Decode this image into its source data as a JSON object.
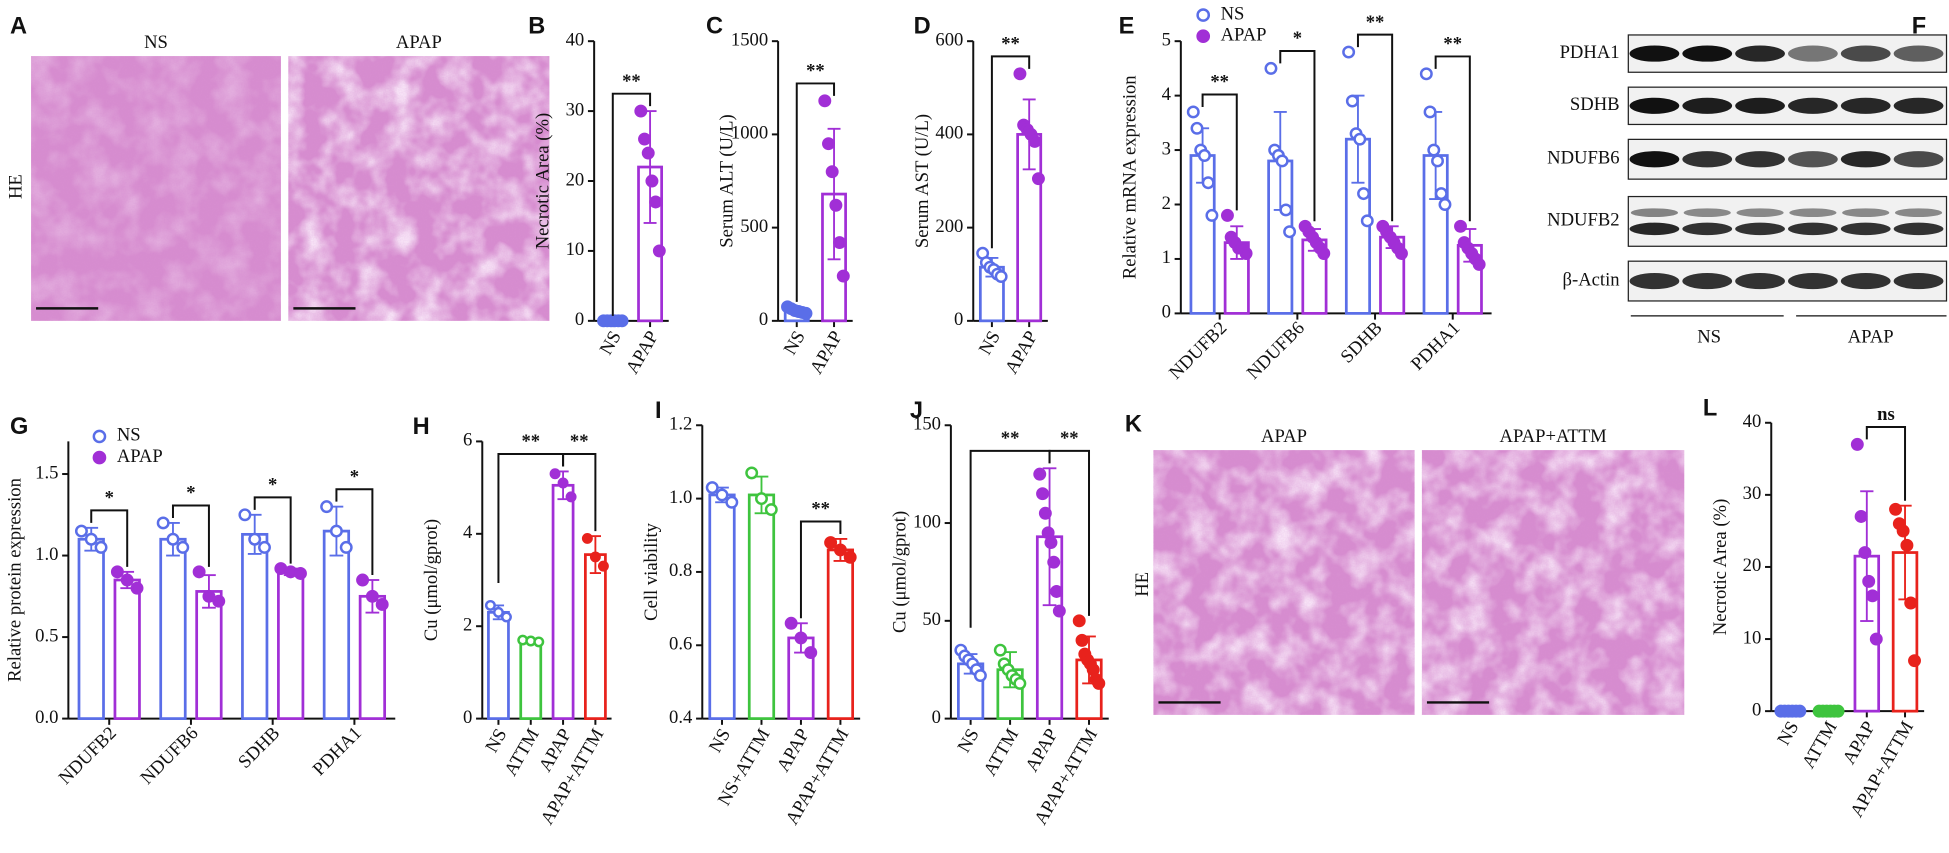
{
  "images": [
    {
      "letter": "A",
      "labels": [
        "NS",
        "APAP"
      ],
      "stain": "HE"
    },
    {
      "letter": "K",
      "labels": [
        "APAP",
        "APAP+ATTM"
      ],
      "stain": "HE"
    }
  ],
  "blot": {
    "letter": "F",
    "proteins": [
      "PDHA1",
      "SDHB",
      "NDUFB6",
      "NDUFB2",
      "β-Actin"
    ],
    "groups": [
      "NS",
      "APAP"
    ]
  },
  "chart_data": [
    {
      "type": "bar",
      "panel": "B",
      "ylabel": "Necrotic Area (%)",
      "categories": [
        "NS",
        "APAP"
      ],
      "values": [
        0,
        22
      ],
      "errors": [
        0,
        8
      ],
      "points": [
        [
          0,
          0,
          0,
          0,
          0,
          0
        ],
        [
          30,
          26,
          24,
          20,
          17,
          10
        ]
      ],
      "colors": [
        "#5a6ee8",
        "#a12fd6"
      ],
      "hollow": [
        false,
        false
      ],
      "ylim": [
        0,
        40
      ],
      "yticks": [
        0,
        10,
        20,
        30,
        40
      ],
      "significance": [
        {
          "between": [
            0,
            1
          ],
          "label": "**"
        }
      ]
    },
    {
      "type": "bar",
      "panel": "C",
      "ylabel": "Serum ALT (U/L)",
      "categories": [
        "NS",
        "APAP"
      ],
      "values": [
        55,
        680
      ],
      "errors": [
        15,
        350
      ],
      "points": [
        [
          75,
          65,
          55,
          50,
          45,
          40
        ],
        [
          1180,
          950,
          800,
          620,
          420,
          240
        ]
      ],
      "colors": [
        "#5a6ee8",
        "#a12fd6"
      ],
      "hollow": [
        false,
        false
      ],
      "ylim": [
        0,
        1500
      ],
      "yticks": [
        0,
        500,
        1000,
        1500
      ],
      "significance": [
        {
          "between": [
            0,
            1
          ],
          "label": "**"
        }
      ]
    },
    {
      "type": "bar",
      "panel": "D",
      "ylabel": "Serum AST (U/L)",
      "categories": [
        "NS",
        "APAP"
      ],
      "values": [
        115,
        400
      ],
      "errors": [
        20,
        75
      ],
      "points": [
        [
          145,
          125,
          115,
          110,
          100,
          95
        ],
        [
          530,
          420,
          410,
          400,
          385,
          305
        ]
      ],
      "colors": [
        "#5a6ee8",
        "#a12fd6"
      ],
      "hollow": [
        true,
        false
      ],
      "ylim": [
        0,
        600
      ],
      "yticks": [
        0,
        200,
        400,
        600
      ],
      "significance": [
        {
          "between": [
            0,
            1
          ],
          "label": "**"
        }
      ]
    },
    {
      "type": "grouped_bar",
      "panel": "E",
      "ylabel": "Relative mRNA expression",
      "categories": [
        "NDUFB2",
        "NDUFB6",
        "SDHB",
        "PDHA1"
      ],
      "series": [
        {
          "name": "NS",
          "color": "#5a6ee8",
          "hollow": true,
          "values": [
            2.9,
            2.8,
            3.2,
            2.9
          ],
          "errors": [
            0.5,
            0.9,
            0.8,
            0.8
          ],
          "points": [
            [
              3.7,
              3.4,
              3.0,
              2.9,
              2.4,
              1.8
            ],
            [
              4.5,
              3.0,
              2.9,
              2.8,
              1.9,
              1.5
            ],
            [
              4.8,
              3.9,
              3.3,
              3.2,
              2.2,
              1.7
            ],
            [
              4.4,
              3.7,
              3.0,
              2.8,
              2.2,
              2.0
            ]
          ]
        },
        {
          "name": "APAP",
          "color": "#a12fd6",
          "hollow": false,
          "values": [
            1.3,
            1.35,
            1.4,
            1.25
          ],
          "errors": [
            0.3,
            0.2,
            0.2,
            0.3
          ],
          "points": [
            [
              1.8,
              1.4,
              1.3,
              1.2,
              1.2,
              1.1
            ],
            [
              1.6,
              1.5,
              1.4,
              1.3,
              1.2,
              1.1
            ],
            [
              1.6,
              1.5,
              1.4,
              1.3,
              1.2,
              1.1
            ],
            [
              1.6,
              1.3,
              1.2,
              1.1,
              1.0,
              0.9
            ]
          ]
        }
      ],
      "ylim": [
        0,
        5
      ],
      "yticks": [
        0,
        1,
        2,
        3,
        4,
        5
      ],
      "significance": [
        "**",
        "*",
        "**",
        "**"
      ]
    },
    {
      "type": "grouped_bar",
      "panel": "G",
      "ylabel": "Relative protein expression",
      "categories": [
        "NDUFB2",
        "NDUFB6",
        "SDHB",
        "PDHA1"
      ],
      "series": [
        {
          "name": "NS",
          "color": "#5a6ee8",
          "hollow": true,
          "values": [
            1.1,
            1.1,
            1.13,
            1.15
          ],
          "errors": [
            0.07,
            0.1,
            0.12,
            0.15
          ],
          "points": [
            [
              1.15,
              1.1,
              1.05
            ],
            [
              1.2,
              1.1,
              1.05
            ],
            [
              1.25,
              1.1,
              1.05
            ],
            [
              1.3,
              1.15,
              1.05
            ]
          ]
        },
        {
          "name": "APAP",
          "color": "#a12fd6",
          "hollow": false,
          "values": [
            0.85,
            0.78,
            0.9,
            0.75
          ],
          "errors": [
            0.05,
            0.1,
            0.02,
            0.1
          ],
          "points": [
            [
              0.9,
              0.85,
              0.8
            ],
            [
              0.9,
              0.75,
              0.72
            ],
            [
              0.92,
              0.9,
              0.89
            ],
            [
              0.85,
              0.75,
              0.7
            ]
          ]
        }
      ],
      "ylim": [
        0,
        1.7
      ],
      "yticks": [
        {
          "value": 0,
          "label": "0.0"
        },
        0.5,
        {
          "value": 1,
          "label": "1.0"
        },
        1.5
      ],
      "significance": [
        "*",
        "*",
        "*",
        "*"
      ]
    },
    {
      "type": "bar",
      "panel": "H",
      "ylabel": "Cu (μmol/gprot)",
      "categories": [
        "NS",
        "ATTM",
        "APAP",
        "APAP+ATTM"
      ],
      "values": [
        2.3,
        1.68,
        5.05,
        3.55
      ],
      "errors": [
        0.15,
        0.05,
        0.3,
        0.4
      ],
      "points": [
        [
          2.45,
          2.3,
          2.2
        ],
        [
          1.7,
          1.68,
          1.66
        ],
        [
          5.3,
          5.1,
          4.8
        ],
        [
          3.9,
          3.5,
          3.3
        ]
      ],
      "colors": [
        "#5a6ee8",
        "#3ec43e",
        "#a12fd6",
        "#e8221c"
      ],
      "hollow": [
        true,
        true,
        false,
        false
      ],
      "ylim": [
        0,
        6
      ],
      "yticks": [
        0,
        2,
        4,
        6
      ],
      "significance": [
        {
          "between": [
            0,
            2
          ],
          "label": "**"
        },
        {
          "between": [
            2,
            3
          ],
          "label": "**"
        }
      ]
    },
    {
      "type": "bar",
      "panel": "I",
      "ylabel": "Cell viability",
      "categories": [
        "NS",
        "NS+ATTM",
        "APAP",
        "APAP+ATTM"
      ],
      "values": [
        1.01,
        1.01,
        0.62,
        0.86
      ],
      "errors": [
        0.02,
        0.05,
        0.04,
        0.03
      ],
      "points": [
        [
          1.03,
          1.01,
          0.99
        ],
        [
          1.07,
          1.0,
          0.97
        ],
        [
          0.66,
          0.62,
          0.58
        ],
        [
          0.88,
          0.86,
          0.84
        ]
      ],
      "colors": [
        "#5a6ee8",
        "#3ec43e",
        "#a12fd6",
        "#e8221c"
      ],
      "hollow": [
        true,
        true,
        false,
        false
      ],
      "ylim": [
        0.4,
        1.2
      ],
      "yticks": [
        0.4,
        0.6,
        0.8,
        {
          "value": 1,
          "label": "1.0"
        },
        1.2
      ],
      "significance": [
        {
          "between": [
            2,
            3
          ],
          "label": "**"
        }
      ]
    },
    {
      "type": "bar",
      "panel": "J",
      "ylabel": "Cu (μmol/gprot)",
      "categories": [
        "NS",
        "ATTM",
        "APAP",
        "APAP+ATTM"
      ],
      "values": [
        28,
        25,
        93,
        30
      ],
      "errors": [
        5,
        9,
        35,
        12
      ],
      "points": [
        [
          35,
          32,
          30,
          28,
          25,
          22
        ],
        [
          35,
          28,
          25,
          22,
          20,
          18
        ],
        [
          125,
          115,
          105,
          95,
          90,
          80,
          65,
          55
        ],
        [
          50,
          40,
          33,
          30,
          28,
          25,
          20,
          18
        ]
      ],
      "colors": [
        "#5a6ee8",
        "#3ec43e",
        "#a12fd6",
        "#e8221c"
      ],
      "hollow": [
        true,
        true,
        false,
        false
      ],
      "ylim": [
        0,
        150
      ],
      "yticks": [
        0,
        50,
        100,
        150
      ],
      "significance": [
        {
          "between": [
            0,
            2
          ],
          "label": "**"
        },
        {
          "between": [
            2,
            3
          ],
          "label": "**"
        }
      ]
    },
    {
      "type": "bar",
      "panel": "L",
      "ylabel": "Necrotic Area (%)",
      "categories": [
        "NS",
        "ATTM",
        "APAP",
        "APAP+ATTM"
      ],
      "values": [
        0,
        0,
        21.5,
        22
      ],
      "errors": [
        0,
        0,
        9,
        6.5
      ],
      "points": [
        [
          0,
          0,
          0,
          0,
          0,
          0
        ],
        [
          0,
          0,
          0,
          0,
          0,
          0
        ],
        [
          37,
          27,
          22,
          18,
          16,
          10
        ],
        [
          28,
          26,
          25,
          23,
          15,
          7
        ]
      ],
      "colors": [
        "#5a6ee8",
        "#3ec43e",
        "#a12fd6",
        "#e8221c"
      ],
      "hollow": [
        false,
        false,
        false,
        false
      ],
      "ylim": [
        0,
        40
      ],
      "yticks": [
        0,
        10,
        20,
        30,
        40
      ],
      "significance": [
        {
          "between": [
            2,
            3
          ],
          "label": "ns"
        }
      ]
    }
  ]
}
